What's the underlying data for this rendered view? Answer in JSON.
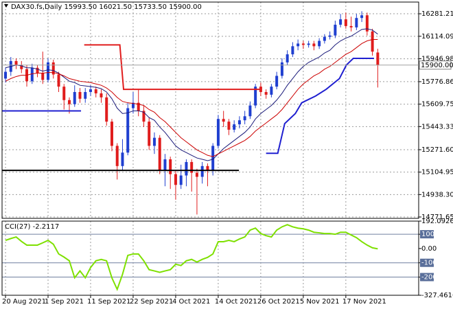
{
  "chart_data": [
    {
      "type": "candlestick",
      "title": "DAX30.fs,Daily  15993.50 16021.50 15733.50 15900.00",
      "xlim": [
        -0.65,
        77.7
      ],
      "xticks": [
        {
          "value": 0,
          "label": "20 Aug 2021"
        },
        {
          "value": 8,
          "label": "1 Sep 2021"
        },
        {
          "value": 16,
          "label": "11 Sep 2021"
        },
        {
          "value": 24,
          "label": "22 Sep 2021"
        },
        {
          "value": 32,
          "label": "4 Oct 2021"
        },
        {
          "value": 40,
          "label": "14 Oct 2021"
        },
        {
          "value": 48,
          "label": "26 Oct 2021"
        },
        {
          "value": 56,
          "label": "5 Nov 2021"
        },
        {
          "value": 64,
          "label": "17 Nov 2021"
        }
      ],
      "ylim": [
        14761.45,
        16368.2
      ],
      "yticks": [
        16281.21,
        16114.09,
        15946.98,
        15776.86,
        15609.75,
        15443.33,
        {
          "value": 15271.6,
          "label": "15271.60"
        },
        15104.95,
        {
          "value": 14938.3,
          "label": "14938.30"
        },
        14771.65
      ],
      "grid": true,
      "up_color": "#1f3fd0",
      "down_color": "#e01c1c",
      "open": [
        15800,
        15850,
        15930,
        15900,
        15870,
        15780,
        15880,
        15840,
        15790,
        15920,
        15830,
        15740,
        15640,
        15610,
        15700,
        15650,
        15700,
        15720,
        15690,
        15660,
        15480,
        15300,
        15150,
        15250,
        15580,
        15620,
        15560,
        15480,
        15300,
        15360,
        15120,
        15200,
        15090,
        15010,
        15080,
        15180,
        15100,
        15070,
        15150,
        15120,
        15300,
        15500,
        15480,
        15420,
        15460,
        15490,
        15520,
        15600,
        15740,
        15700,
        15680,
        15740,
        15820,
        15920,
        15980,
        16040,
        16060,
        16050,
        16060,
        16040,
        16080,
        16110,
        16120,
        16200,
        16240,
        16190,
        16180,
        16250,
        16270,
        16150,
        15993.5
      ],
      "high": [
        15880,
        15960,
        15950,
        15930,
        15900,
        15910,
        15900,
        16000,
        15950,
        15940,
        15850,
        15760,
        15660,
        15750,
        15730,
        15730,
        15750,
        15740,
        15720,
        15690,
        15500,
        15320,
        15350,
        15620,
        15700,
        15720,
        15600,
        15510,
        15400,
        15380,
        15240,
        15220,
        15120,
        15160,
        15200,
        15200,
        15130,
        15180,
        15170,
        15320,
        15530,
        15560,
        15500,
        15490,
        15520,
        15560,
        15630,
        15760,
        15770,
        15720,
        15760,
        15850,
        15950,
        16010,
        16070,
        16090,
        16080,
        16080,
        16080,
        16100,
        16130,
        16150,
        16230,
        16280,
        16290,
        16260,
        16280,
        16300,
        16290,
        16170,
        16021.5
      ],
      "low": [
        15770,
        15820,
        15870,
        15840,
        15740,
        15760,
        15810,
        15760,
        15770,
        15800,
        15700,
        15570,
        15540,
        15590,
        15620,
        15620,
        15670,
        15660,
        15620,
        15450,
        15260,
        15050,
        15120,
        15230,
        15540,
        15520,
        15440,
        15270,
        15240,
        15090,
        15000,
        14980,
        14900,
        14980,
        15000,
        14960,
        14790,
        15020,
        15000,
        15080,
        15280,
        15440,
        15380,
        15400,
        15430,
        15460,
        15500,
        15580,
        15670,
        15650,
        15660,
        15720,
        15800,
        15900,
        15960,
        16010,
        16020,
        16030,
        16010,
        16020,
        16060,
        16090,
        16100,
        16180,
        16170,
        16150,
        16160,
        16220,
        16120,
        15970,
        15733.5
      ],
      "close": [
        15850,
        15930,
        15900,
        15870,
        15780,
        15880,
        15840,
        15790,
        15920,
        15830,
        15740,
        15640,
        15610,
        15700,
        15650,
        15700,
        15720,
        15690,
        15660,
        15480,
        15300,
        15150,
        15250,
        15580,
        15620,
        15560,
        15480,
        15300,
        15360,
        15120,
        15200,
        15090,
        15010,
        15080,
        15180,
        15100,
        15070,
        15150,
        15120,
        15300,
        15500,
        15480,
        15420,
        15460,
        15490,
        15520,
        15600,
        15740,
        15700,
        15680,
        15740,
        15820,
        15920,
        15980,
        16040,
        16060,
        16050,
        16060,
        16040,
        16080,
        16110,
        16120,
        16200,
        16240,
        16190,
        16180,
        16250,
        16270,
        16150,
        16000,
        15900
      ],
      "last_price": {
        "value": 15900,
        "label": "15900.00"
      },
      "series": [
        {
          "color": "#1a1a7a",
          "values": [
            15880,
            15890,
            15900,
            15895,
            15880,
            15880,
            15870,
            15855,
            15865,
            15860,
            15840,
            15810,
            15780,
            15770,
            15750,
            15745,
            15740,
            15735,
            15725,
            15700,
            15650,
            15580,
            15540,
            15545,
            15560,
            15560,
            15550,
            15510,
            15490,
            15440,
            15400,
            15350,
            15300,
            15270,
            15250,
            15230,
            15210,
            15200,
            15190,
            15200,
            15240,
            15280,
            15310,
            15340,
            15370,
            15400,
            15440,
            15500,
            15540,
            15570,
            15600,
            15640,
            15690,
            15750,
            15800,
            15850,
            15890,
            15920,
            15940,
            15960,
            15990,
            16010,
            16050,
            16080,
            16100,
            16115,
            16140,
            16165,
            16170,
            16160,
            16130
          ]
        },
        {
          "color": "#cc0000",
          "values": [
            15780,
            15800,
            15815,
            15825,
            15825,
            15835,
            15840,
            15840,
            15845,
            15845,
            15835,
            15820,
            15800,
            15790,
            15780,
            15775,
            15770,
            15760,
            15750,
            15730,
            15700,
            15660,
            15630,
            15620,
            15615,
            15610,
            15600,
            15570,
            15550,
            15510,
            15480,
            15440,
            15400,
            15360,
            15330,
            15300,
            15270,
            15250,
            15230,
            15220,
            15240,
            15260,
            15280,
            15300,
            15320,
            15340,
            15370,
            15410,
            15440,
            15470,
            15500,
            15530,
            15570,
            15620,
            15670,
            15720,
            15760,
            15790,
            15820,
            15840,
            15870,
            15890,
            15920,
            15950,
            15980,
            16000,
            16030,
            16060,
            16080,
            16090,
            16090
          ]
        }
      ],
      "lines": [
        {
          "color": "#e01c1c",
          "x": [
            14.8,
            21.5,
            22.2,
            48
          ],
          "y": [
            16050,
            16050,
            15720,
            15720
          ]
        },
        {
          "color": "#1f1fd0",
          "x": [
            -0.6,
            14.2
          ],
          "y": [
            15560,
            15560
          ]
        },
        {
          "color": "#000000",
          "x": [
            -0.6,
            43.9
          ],
          "y": [
            15118,
            15118
          ]
        },
        {
          "color": "#1f1fd0",
          "x": [
            49,
            51.2,
            52.5,
            54.5,
            55.7,
            58.3,
            60.3,
            62.8,
            64.1,
            65.4,
            69.3
          ],
          "y": [
            15245,
            15245,
            15465,
            15540,
            15620,
            15670,
            15720,
            15800,
            15900,
            15950,
            15950
          ]
        }
      ]
    },
    {
      "type": "line",
      "title": "CCI(27) -2.2117",
      "ylim": [
        -327.4616,
        192.0926
      ],
      "yticks": [
        192.0926,
        100,
        {
          "value": 0,
          "label": "0.00"
        },
        -100,
        -200,
        -327.4616
      ],
      "levels": [
        100,
        -100,
        -200
      ],
      "series": [
        {
          "color": "#7ee000",
          "values": [
            57,
            70,
            81,
            50,
            24,
            24,
            24,
            40,
            57,
            30,
            -38,
            -60,
            -86,
            -205,
            -157,
            -205,
            -133,
            -86,
            -76,
            -86,
            -205,
            -286,
            -181,
            -48,
            -38,
            -38,
            -86,
            -148,
            -157,
            -167,
            -157,
            -148,
            -110,
            -119,
            -86,
            -76,
            -95,
            -76,
            -62,
            -38,
            48,
            48,
            57,
            48,
            67,
            81,
            129,
            143,
            105,
            90,
            81,
            129,
            152,
            167,
            152,
            143,
            138,
            129,
            114,
            110,
            105,
            105,
            100,
            114,
            114,
            95,
            76,
            48,
            24,
            5,
            -2.2117
          ]
        }
      ]
    }
  ]
}
